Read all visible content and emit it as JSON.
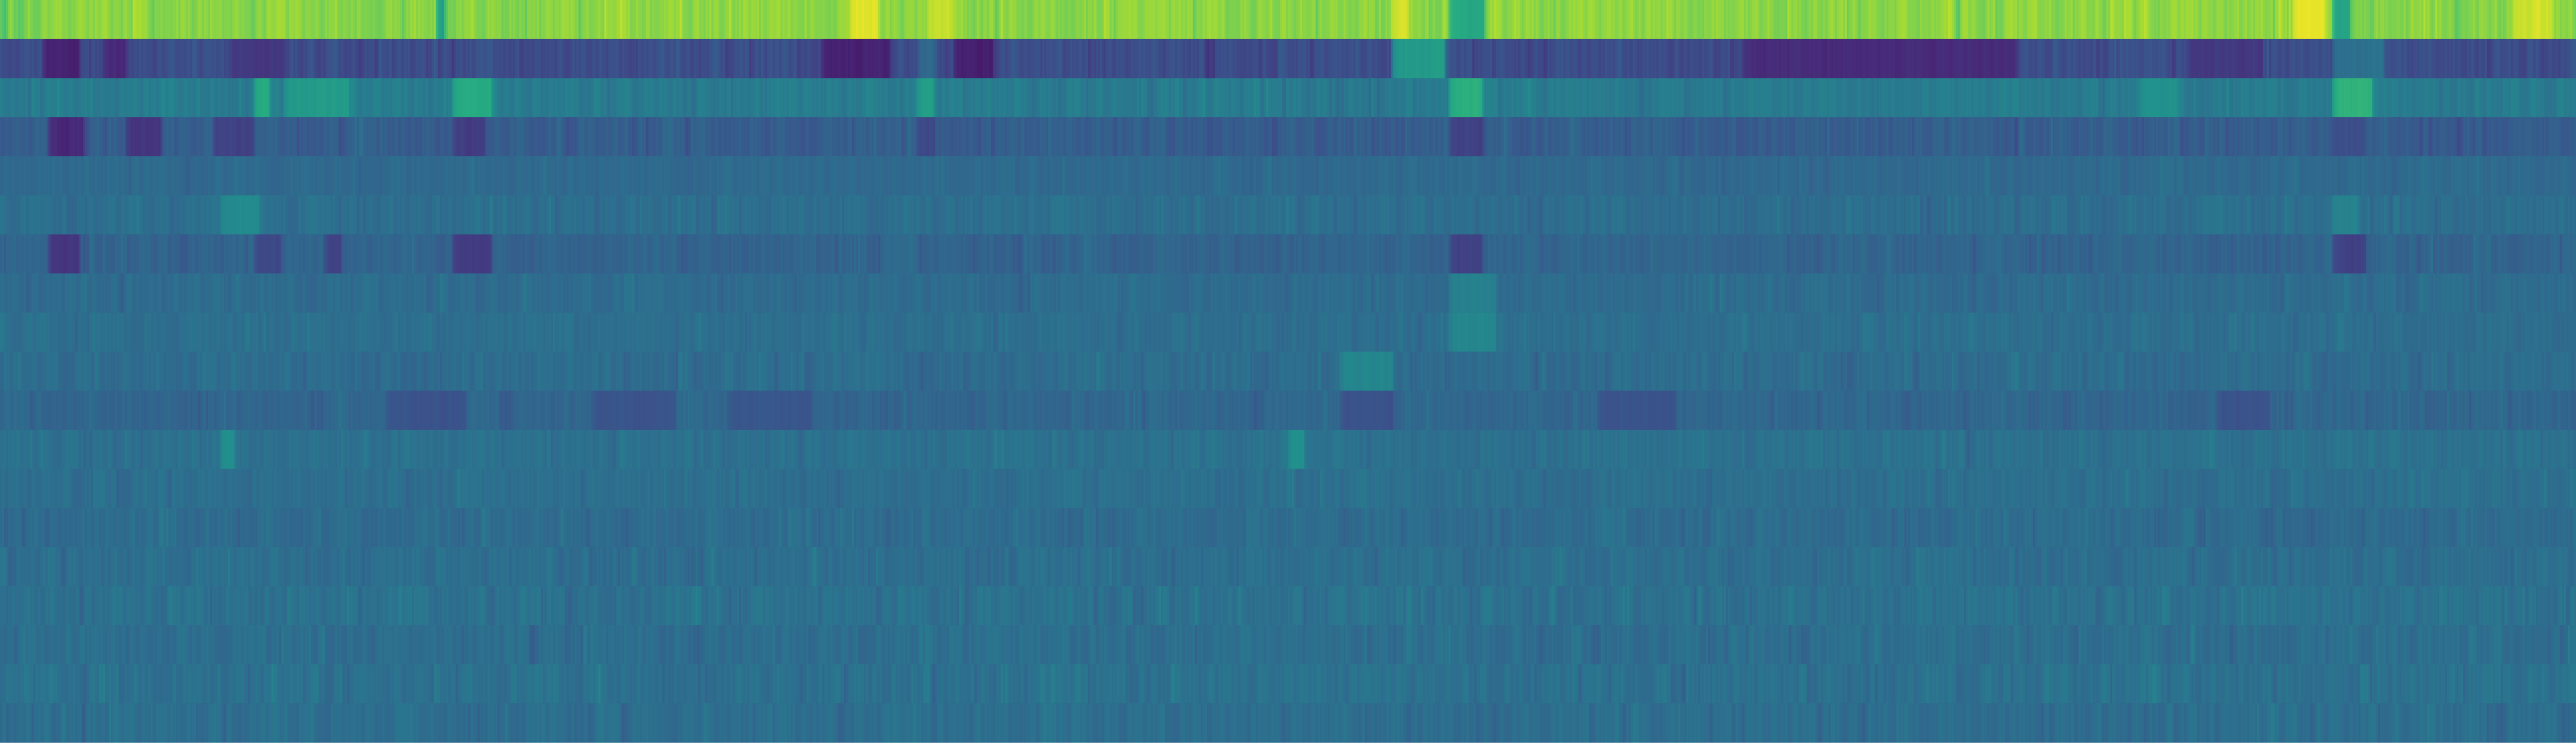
{
  "chart_data": {
    "type": "heatmap",
    "colormap": "viridis",
    "colors": {
      "low": "#440154",
      "mid": "#21918c",
      "high": "#fde725",
      "background": "#ffffff"
    },
    "value_range": [
      0,
      1
    ],
    "n_rows": 19,
    "n_cols": 1300,
    "title": "",
    "xlabel": "",
    "ylabel": "",
    "axes_visible": false,
    "colorbar": false,
    "grid": false,
    "rows": [
      {
        "row": 0,
        "mean": 0.83,
        "spread": 0.06,
        "seed": 101,
        "bands": [
          [
            0.0,
            0.002,
            0.7
          ],
          [
            0.169,
            0.172,
            0.55
          ],
          [
            0.33,
            0.34,
            0.96
          ],
          [
            0.36,
            0.368,
            0.92
          ],
          [
            0.54,
            0.546,
            0.96
          ],
          [
            0.562,
            0.576,
            0.6
          ],
          [
            0.905,
            0.912,
            0.58
          ],
          [
            0.89,
            0.902,
            0.98
          ],
          [
            0.975,
            0.99,
            0.93
          ]
        ]
      },
      {
        "row": 1,
        "mean": 0.24,
        "spread": 0.05,
        "seed": 202,
        "bands": [
          [
            0.016,
            0.03,
            0.1
          ],
          [
            0.04,
            0.048,
            0.12
          ],
          [
            0.09,
            0.11,
            0.17
          ],
          [
            0.318,
            0.345,
            0.1
          ],
          [
            0.356,
            0.362,
            0.35
          ],
          [
            0.37,
            0.385,
            0.09
          ],
          [
            0.54,
            0.56,
            0.55
          ],
          [
            0.676,
            0.782,
            0.13
          ],
          [
            0.85,
            0.878,
            0.17
          ],
          [
            0.905,
            0.925,
            0.38
          ]
        ]
      },
      {
        "row": 2,
        "mean": 0.42,
        "spread": 0.04,
        "seed": 303,
        "bands": [
          [
            0.098,
            0.104,
            0.62
          ],
          [
            0.11,
            0.135,
            0.55
          ],
          [
            0.175,
            0.19,
            0.62
          ],
          [
            0.355,
            0.362,
            0.56
          ],
          [
            0.562,
            0.575,
            0.64
          ],
          [
            0.905,
            0.92,
            0.65
          ],
          [
            0.83,
            0.845,
            0.5
          ]
        ]
      },
      {
        "row": 3,
        "mean": 0.3,
        "spread": 0.05,
        "seed": 404,
        "bands": [
          [
            0.018,
            0.032,
            0.12
          ],
          [
            0.048,
            0.062,
            0.16
          ],
          [
            0.082,
            0.098,
            0.2
          ],
          [
            0.175,
            0.188,
            0.18
          ],
          [
            0.355,
            0.363,
            0.22
          ],
          [
            0.562,
            0.575,
            0.2
          ],
          [
            0.905,
            0.918,
            0.24
          ]
        ]
      },
      {
        "row": 4,
        "mean": 0.35,
        "spread": 0.03,
        "seed": 505,
        "bands": []
      },
      {
        "row": 5,
        "mean": 0.37,
        "spread": 0.04,
        "seed": 606,
        "bands": [
          [
            0.085,
            0.1,
            0.48
          ],
          [
            0.905,
            0.915,
            0.45
          ]
        ]
      },
      {
        "row": 6,
        "mean": 0.33,
        "spread": 0.04,
        "seed": 707,
        "bands": [
          [
            0.018,
            0.03,
            0.16
          ],
          [
            0.098,
            0.108,
            0.22
          ],
          [
            0.125,
            0.132,
            0.2
          ],
          [
            0.175,
            0.19,
            0.18
          ],
          [
            0.562,
            0.575,
            0.2
          ],
          [
            0.905,
            0.918,
            0.2
          ]
        ]
      },
      {
        "row": 7,
        "mean": 0.36,
        "spread": 0.035,
        "seed": 808,
        "bands": [
          [
            0.562,
            0.58,
            0.44
          ]
        ]
      },
      {
        "row": 8,
        "mean": 0.37,
        "spread": 0.035,
        "seed": 909,
        "bands": [
          [
            0.562,
            0.58,
            0.46
          ]
        ]
      },
      {
        "row": 9,
        "mean": 0.36,
        "spread": 0.04,
        "seed": 1001,
        "bands": [
          [
            0.52,
            0.54,
            0.46
          ]
        ]
      },
      {
        "row": 10,
        "mean": 0.34,
        "spread": 0.04,
        "seed": 1102,
        "bands": [
          [
            0.15,
            0.18,
            0.26
          ],
          [
            0.23,
            0.262,
            0.26
          ],
          [
            0.282,
            0.314,
            0.27
          ],
          [
            0.52,
            0.54,
            0.26
          ],
          [
            0.62,
            0.65,
            0.26
          ],
          [
            0.86,
            0.88,
            0.26
          ]
        ]
      },
      {
        "row": 11,
        "mean": 0.38,
        "spread": 0.035,
        "seed": 1203,
        "bands": [
          [
            0.085,
            0.09,
            0.5
          ],
          [
            0.5,
            0.506,
            0.5
          ]
        ]
      },
      {
        "row": 12,
        "mean": 0.37,
        "spread": 0.035,
        "seed": 1304,
        "bands": []
      },
      {
        "row": 13,
        "mean": 0.36,
        "spread": 0.04,
        "seed": 1405,
        "bands": []
      },
      {
        "row": 14,
        "mean": 0.37,
        "spread": 0.04,
        "seed": 1506,
        "bands": []
      },
      {
        "row": 15,
        "mean": 0.38,
        "spread": 0.045,
        "seed": 1607,
        "bands": []
      },
      {
        "row": 16,
        "mean": 0.37,
        "spread": 0.045,
        "seed": 1708,
        "bands": []
      },
      {
        "row": 17,
        "mean": 0.38,
        "spread": 0.045,
        "seed": 1809,
        "bands": []
      },
      {
        "row": 18,
        "mean": 0.37,
        "spread": 0.04,
        "seed": 1910,
        "bands": []
      }
    ]
  }
}
